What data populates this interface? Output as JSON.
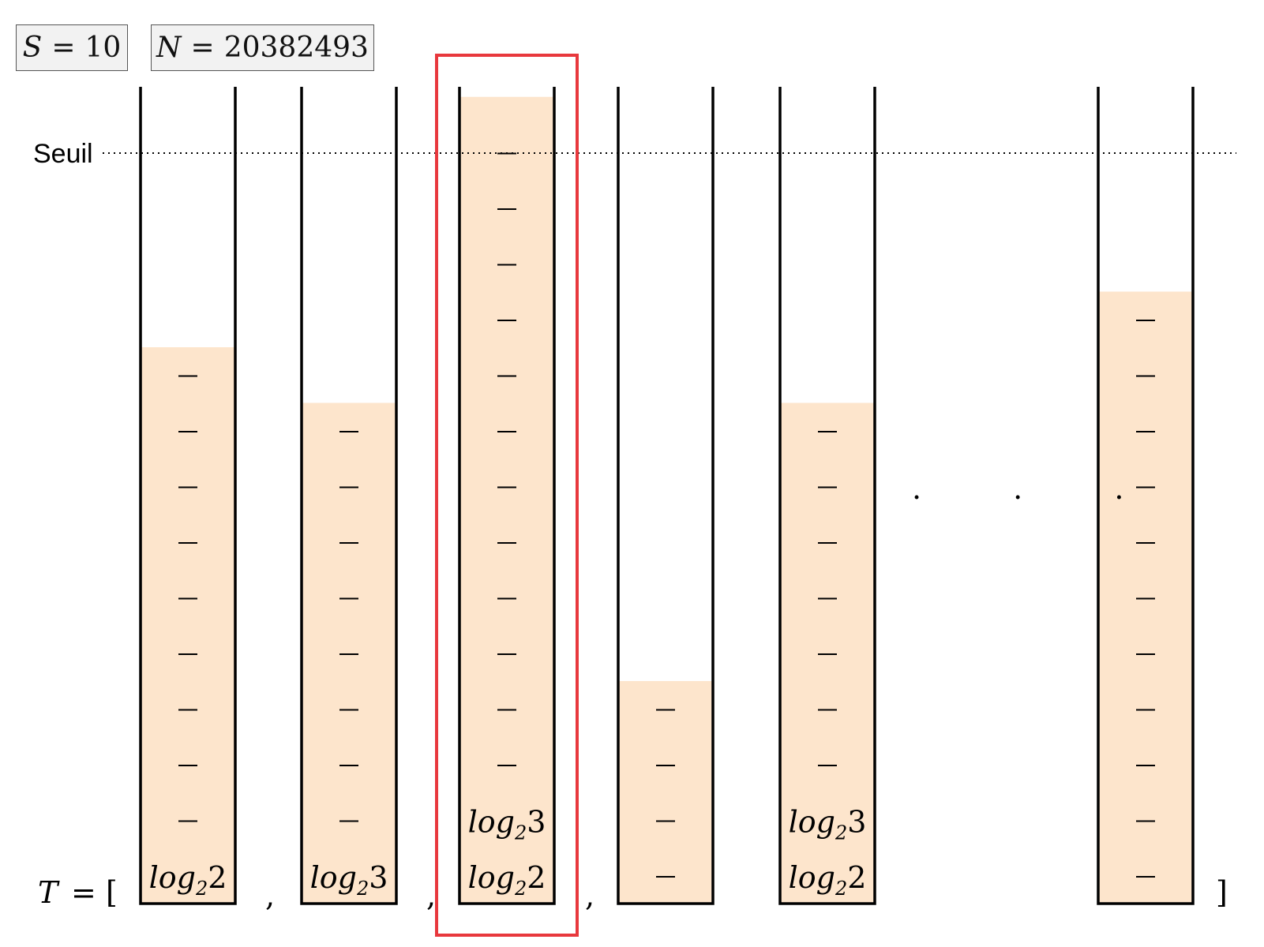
{
  "params": {
    "s": {
      "var": "S",
      "value": "10"
    },
    "n": {
      "var": "N",
      "value": "20382493"
    }
  },
  "threshold_label": "Seuil",
  "array": {
    "var": "T",
    "equals": "=",
    "open_bracket": "[",
    "close_bracket": "]",
    "separator": ",",
    "ellipsis": ". . ."
  },
  "threshold_level": 14,
  "tubes": [
    {
      "fill": 10,
      "dashes": 9,
      "labels": [
        {
          "base": "log",
          "sub": "2",
          "arg": "2"
        }
      ],
      "highlighted": false
    },
    {
      "fill": 9,
      "dashes": 8,
      "labels": [
        {
          "base": "log",
          "sub": "2",
          "arg": "3"
        }
      ],
      "highlighted": false
    },
    {
      "fill": 14.5,
      "dashes": 12,
      "labels": [
        {
          "base": "log",
          "sub": "2",
          "arg": "2"
        },
        {
          "base": "log",
          "sub": "2",
          "arg": "3"
        }
      ],
      "highlighted": true
    },
    {
      "fill": 4,
      "dashes": 4,
      "labels": [],
      "highlighted": false
    },
    {
      "fill": 9,
      "dashes": 7,
      "labels": [
        {
          "base": "log",
          "sub": "2",
          "arg": "2"
        },
        {
          "base": "log",
          "sub": "2",
          "arg": "3"
        }
      ],
      "highlighted": false
    },
    {
      "fill": 11,
      "dashes": 11,
      "labels": [],
      "highlighted": false
    }
  ],
  "colors": {
    "fill": "#fde5cc",
    "highlight": "#e8383d",
    "wall": "#000000"
  }
}
